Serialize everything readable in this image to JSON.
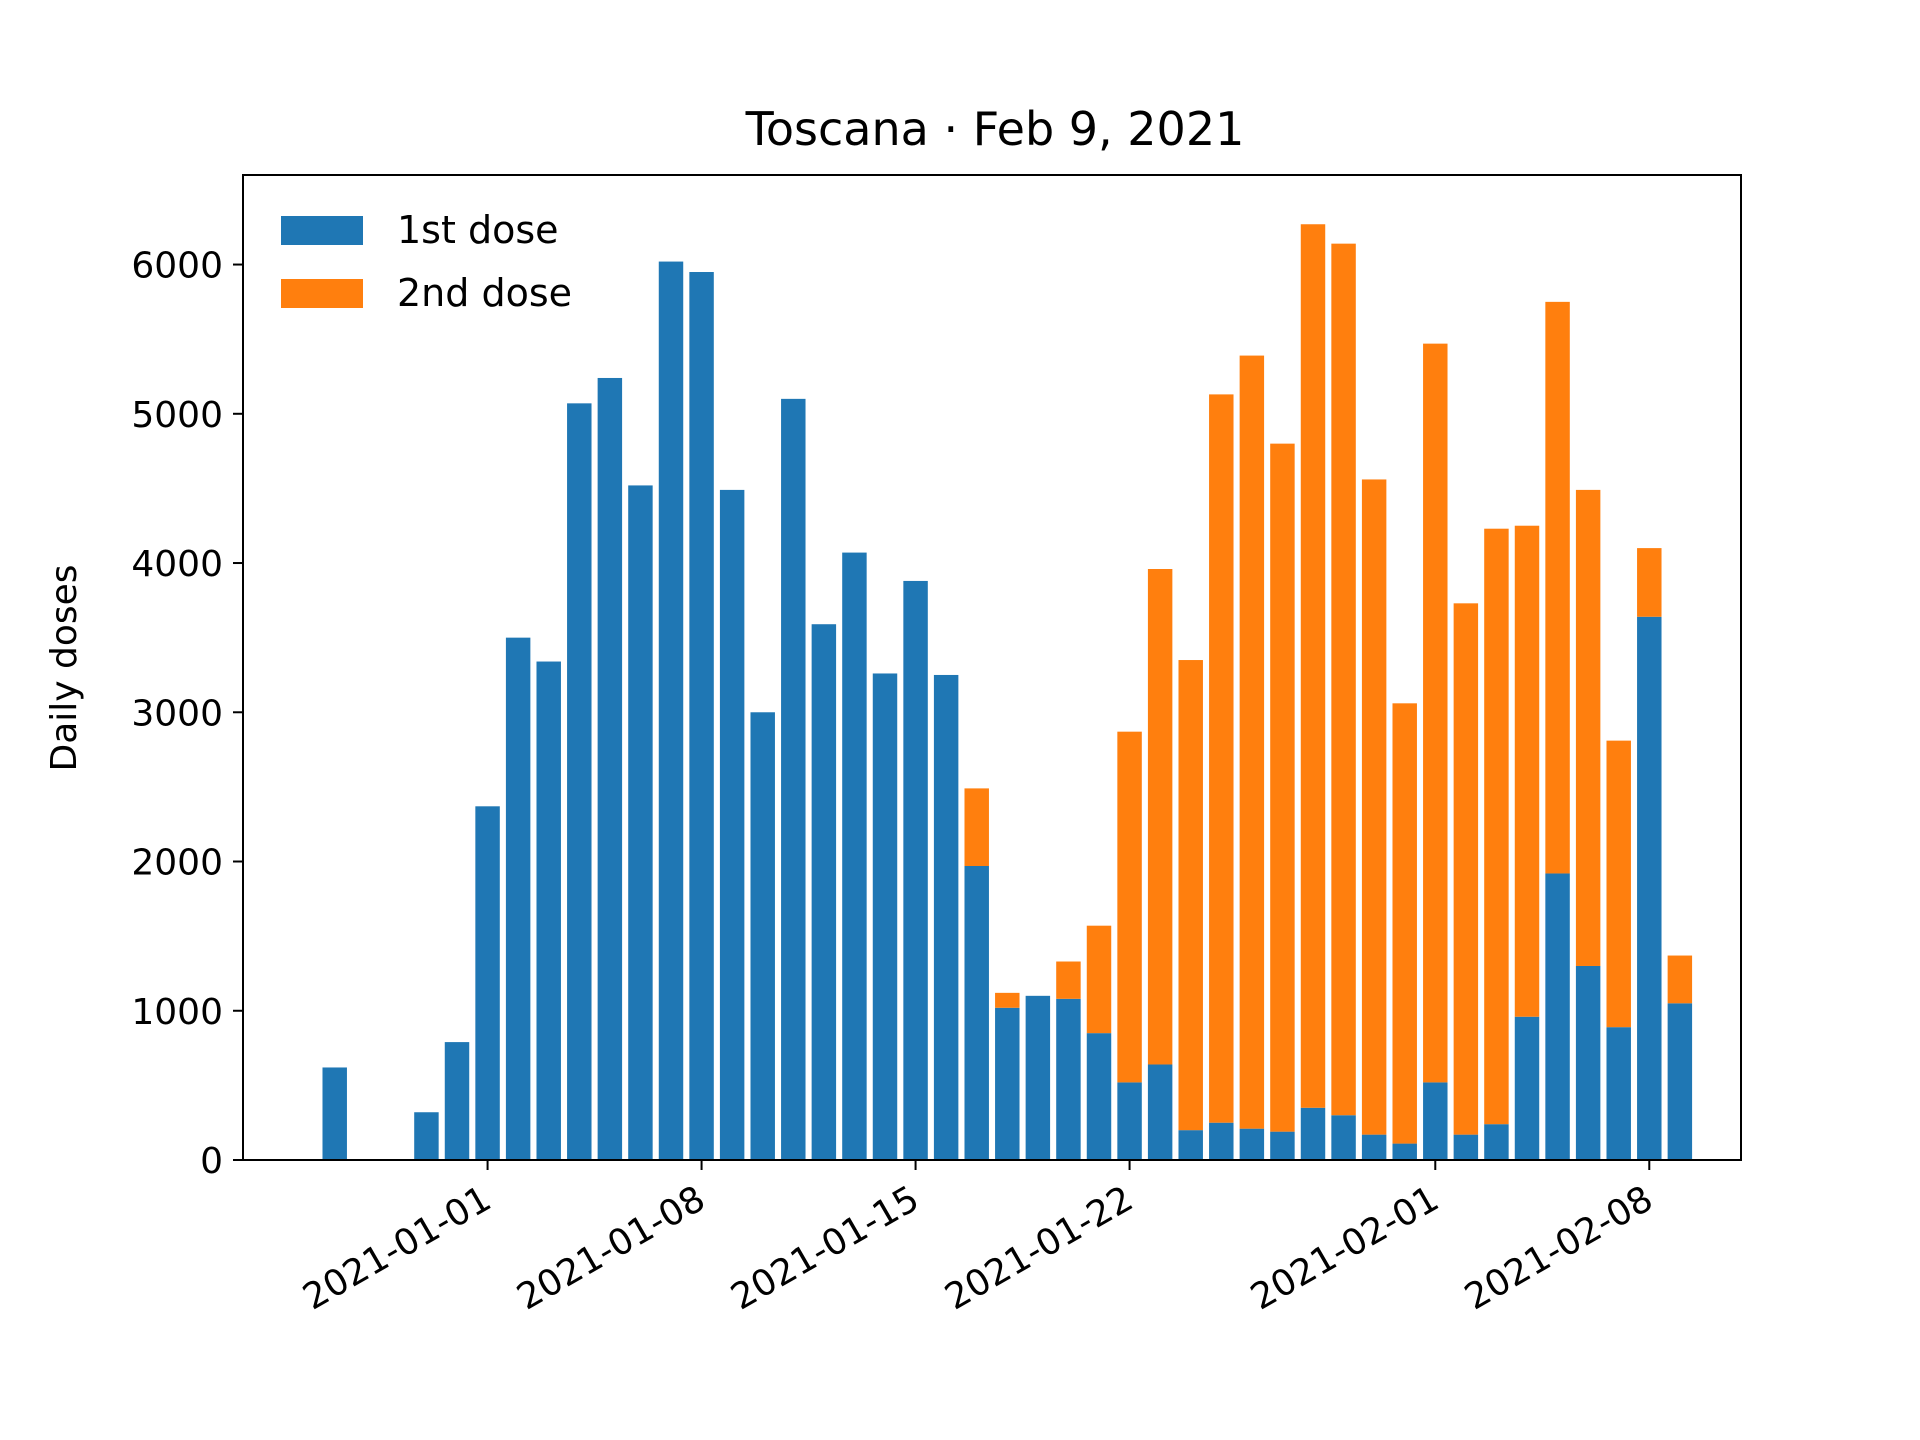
{
  "chart_data": {
    "type": "bar",
    "stacked": true,
    "title": "Toscana · Feb 9, 2021",
    "xlabel": "",
    "ylabel": "Daily doses",
    "ylim": [
      0,
      6600
    ],
    "yticks": [
      0,
      1000,
      2000,
      3000,
      4000,
      5000,
      6000
    ],
    "xlim": [
      "2020-12-24",
      "2021-02-11"
    ],
    "xticks": [
      "2021-01-01",
      "2021-01-08",
      "2021-01-15",
      "2021-01-22",
      "2021-02-01",
      "2021-02-08"
    ],
    "legend_position": "top-left",
    "grid": false,
    "categories": [
      "2020-12-27",
      "2020-12-28",
      "2020-12-29",
      "2020-12-30",
      "2020-12-31",
      "2021-01-01",
      "2021-01-02",
      "2021-01-03",
      "2021-01-04",
      "2021-01-05",
      "2021-01-06",
      "2021-01-07",
      "2021-01-08",
      "2021-01-09",
      "2021-01-10",
      "2021-01-11",
      "2021-01-12",
      "2021-01-13",
      "2021-01-14",
      "2021-01-15",
      "2021-01-16",
      "2021-01-17",
      "2021-01-18",
      "2021-01-19",
      "2021-01-20",
      "2021-01-21",
      "2021-01-22",
      "2021-01-23",
      "2021-01-24",
      "2021-01-25",
      "2021-01-26",
      "2021-01-27",
      "2021-01-28",
      "2021-01-29",
      "2021-01-30",
      "2021-01-31",
      "2021-02-01",
      "2021-02-02",
      "2021-02-03",
      "2021-02-04",
      "2021-02-05",
      "2021-02-06",
      "2021-02-07",
      "2021-02-08",
      "2021-02-09"
    ],
    "series": [
      {
        "name": "1st dose",
        "color": "#1f77b4",
        "values": [
          620,
          0,
          0,
          320,
          790,
          2370,
          3500,
          3340,
          5070,
          5240,
          4520,
          6020,
          5950,
          4490,
          3000,
          5100,
          3590,
          4070,
          3260,
          3880,
          3250,
          1970,
          1020,
          1100,
          1080,
          850,
          520,
          640,
          200,
          250,
          210,
          190,
          350,
          300,
          170,
          110,
          520,
          170,
          240,
          960,
          1920,
          1300,
          890,
          3640,
          1050
        ]
      },
      {
        "name": "2nd dose",
        "color": "#ff7f0e",
        "values": [
          0,
          0,
          0,
          0,
          0,
          0,
          0,
          0,
          0,
          0,
          0,
          0,
          0,
          0,
          0,
          0,
          0,
          0,
          0,
          0,
          0,
          520,
          100,
          0,
          250,
          720,
          2350,
          3320,
          3150,
          4880,
          5180,
          4610,
          5920,
          5840,
          4390,
          2950,
          4950,
          3560,
          3990,
          3290,
          3830,
          3190,
          1920,
          460,
          320
        ]
      }
    ]
  }
}
